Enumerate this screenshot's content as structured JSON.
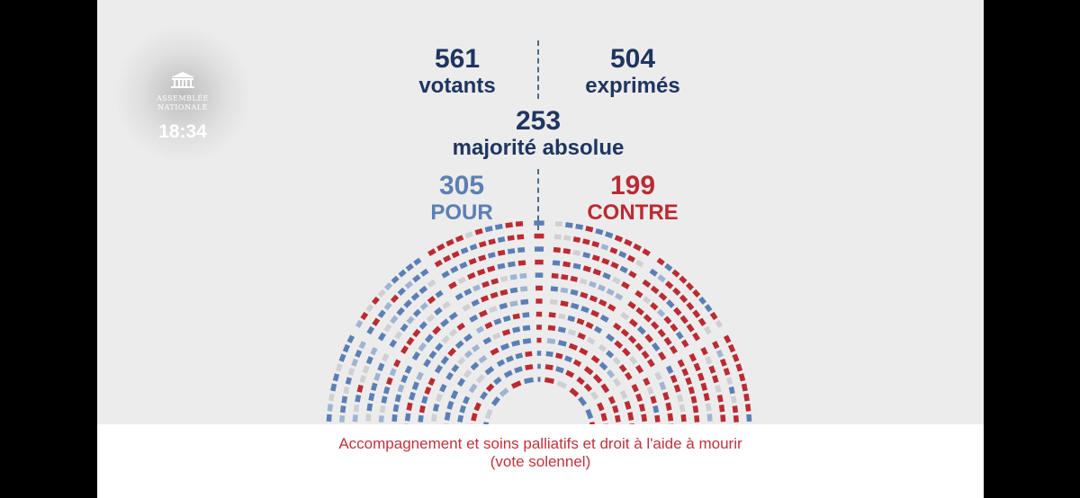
{
  "broadcast": {
    "logo_line1": "ASSEMBLÉE",
    "logo_line2": "NATIONALE",
    "time": "18:34"
  },
  "totals": {
    "votants_value": "561",
    "votants_label": "votants",
    "exprimes_value": "504",
    "exprimes_label": "exprimés",
    "majorite_value": "253",
    "majorite_label": "majorité absolue",
    "pour_value": "305",
    "pour_label": "POUR",
    "contre_value": "199",
    "contre_label": "CONTRE"
  },
  "caption": {
    "line1": "Accompagnement et soins palliatifs et droit à l'aide à mourir",
    "line2": "(vote solennel)"
  },
  "chart_data": {
    "type": "hemicycle",
    "title": "",
    "series": [
      {
        "name": "POUR",
        "value": 305,
        "color": "#5b7fb5"
      },
      {
        "name": "CONTRE",
        "value": 199,
        "color": "#bb2b33"
      }
    ],
    "votants": 561,
    "exprimes": 504,
    "majorite_absolue": 253,
    "seat_colors": {
      "pour": "#5b7fb5",
      "contre": "#bb2b33",
      "absent": "#cfd0d3",
      "light_pour": "#9fb4d3"
    }
  }
}
